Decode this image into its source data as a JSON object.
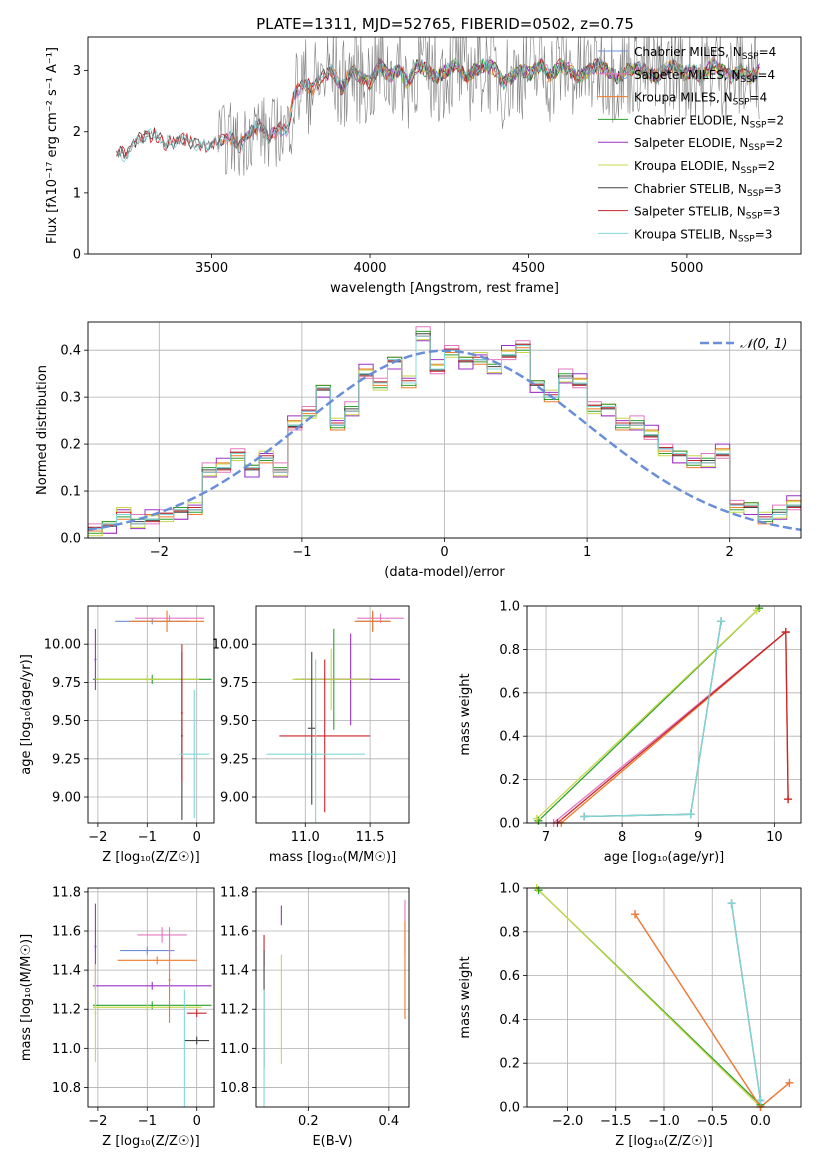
{
  "figure_title": "PLATE=1311, MJD=52765, FIBERID=0502, z=0.75",
  "colors": {
    "Chabrier MILES": "#6a8fd8",
    "Salpeter MILES": "#e377c2",
    "Kroupa MILES": "#f07a28",
    "Chabrier ELODIE": "#2ca02c",
    "Salpeter ELODIE": "#9b30c8",
    "Kroupa ELODIE": "#c8d84a",
    "Chabrier STELIB": "#444444",
    "Salpeter STELIB": "#c8242b",
    "Kroupa STELIB": "#7fd8d8",
    "data": "#808080",
    "normal": "#6a8fd8"
  },
  "chart_data": [
    {
      "id": "spectrum",
      "type": "line",
      "title": "",
      "xlabel": "wavelength [Angstrom, rest frame]",
      "ylabel": "Flux [fλ10⁻¹⁷ erg cm⁻² s⁻¹ A⁻¹]",
      "xlim": [
        3110,
        5360
      ],
      "ylim": [
        0,
        3.55
      ],
      "xticks": [
        3500,
        4000,
        4500,
        5000
      ],
      "yticks": [
        0,
        1,
        2,
        3
      ],
      "grid": false,
      "legend_position": "right",
      "legend": [
        {
          "name": "Chabrier MILES",
          "label": "Chabrier MILES, N",
          "sub": "SSP",
          "tail": "=4"
        },
        {
          "name": "Salpeter MILES",
          "label": "Salpeter MILES, N",
          "sub": "SSP",
          "tail": "=4"
        },
        {
          "name": "Kroupa MILES",
          "label": "Kroupa MILES, N",
          "sub": "SSP",
          "tail": "=4"
        },
        {
          "name": "Chabrier ELODIE",
          "label": "Chabrier ELODIE, N",
          "sub": "SSP",
          "tail": "=2"
        },
        {
          "name": "Salpeter ELODIE",
          "label": "Salpeter ELODIE, N",
          "sub": "SSP",
          "tail": "=2"
        },
        {
          "name": "Kroupa ELODIE",
          "label": "Kroupa ELODIE, N",
          "sub": "SSP",
          "tail": "=2"
        },
        {
          "name": "Chabrier STELIB",
          "label": "Chabrier STELIB, N",
          "sub": "SSP",
          "tail": "=3"
        },
        {
          "name": "Salpeter STELIB",
          "label": "Salpeter STELIB, N",
          "sub": "SSP",
          "tail": "=3"
        },
        {
          "name": "Kroupa STELIB",
          "label": "Kroupa STELIB, N",
          "sub": "SSP",
          "tail": "=3"
        }
      ],
      "data_series": {
        "x": [
          3200,
          3230,
          3260,
          3290,
          3320,
          3350,
          3380,
          3410,
          3440,
          3470,
          3500,
          3530,
          3560,
          3590,
          3620,
          3650,
          3680,
          3710,
          3740,
          3760,
          3790,
          3820,
          3850,
          3880,
          3910,
          3940,
          3970,
          4000,
          4030,
          4060,
          4090,
          4120,
          4150,
          4180,
          4210,
          4240,
          4270,
          4300,
          4330,
          4360,
          4390,
          4420,
          4450,
          4480,
          4510,
          4540,
          4570,
          4600,
          4630,
          4660,
          4690,
          4720,
          4750,
          4780,
          4810,
          4840,
          4870,
          4900,
          4930,
          4960,
          4990,
          5020,
          5050,
          5080,
          5110,
          5140,
          5170,
          5200,
          5230
        ],
        "y": [
          1.7,
          1.6,
          1.85,
          1.9,
          1.95,
          1.8,
          1.85,
          1.9,
          1.82,
          1.78,
          1.8,
          1.85,
          1.9,
          1.75,
          2.0,
          2.1,
          1.9,
          2.05,
          2.0,
          2.6,
          2.8,
          2.7,
          2.9,
          3.0,
          2.7,
          3.0,
          2.9,
          2.8,
          3.1,
          2.9,
          3.0,
          2.8,
          3.1,
          3.0,
          2.9,
          3.0,
          3.1,
          2.9,
          3.0,
          3.1,
          3.05,
          2.8,
          2.9,
          3.0,
          2.95,
          3.1,
          2.9,
          3.1,
          3.0,
          2.9,
          3.0,
          3.1,
          3.0,
          2.9,
          3.0,
          3.05,
          3.0,
          2.9,
          3.0,
          3.1,
          2.95,
          3.0,
          2.9,
          3.1,
          3.0,
          2.9,
          3.0,
          2.9,
          3.0
        ]
      }
    },
    {
      "id": "residuals",
      "type": "line",
      "title": "",
      "xlabel": "(data-model)/error",
      "ylabel": "Normed distribution",
      "xlim": [
        -2.5,
        2.5
      ],
      "ylim": [
        0,
        0.46
      ],
      "xticks": [
        -2,
        -1,
        0,
        1,
        2
      ],
      "yticks": [
        0.0,
        0.1,
        0.2,
        0.3,
        0.4
      ],
      "grid": true,
      "legend_position": "top-right",
      "normal_label": "𝒩(0, 1)",
      "bin_edges": [
        -2.5,
        -2.4,
        -2.3,
        -2.2,
        -2.1,
        -2.0,
        -1.9,
        -1.8,
        -1.7,
        -1.6,
        -1.5,
        -1.4,
        -1.3,
        -1.2,
        -1.1,
        -1.0,
        -0.9,
        -0.8,
        -0.7,
        -0.6,
        -0.5,
        -0.4,
        -0.3,
        -0.2,
        -0.1,
        0.0,
        0.1,
        0.2,
        0.3,
        0.4,
        0.5,
        0.6,
        0.7,
        0.8,
        0.9,
        1.0,
        1.1,
        1.2,
        1.3,
        1.4,
        1.5,
        1.6,
        1.7,
        1.8,
        1.9,
        2.0,
        2.1,
        2.2,
        2.3,
        2.4,
        2.5
      ],
      "histogram": [
        0.02,
        0.03,
        0.05,
        0.03,
        0.04,
        0.05,
        0.06,
        0.06,
        0.14,
        0.15,
        0.18,
        0.15,
        0.17,
        0.14,
        0.24,
        0.27,
        0.32,
        0.24,
        0.27,
        0.35,
        0.33,
        0.38,
        0.33,
        0.43,
        0.36,
        0.4,
        0.38,
        0.38,
        0.36,
        0.39,
        0.41,
        0.33,
        0.3,
        0.34,
        0.33,
        0.28,
        0.28,
        0.24,
        0.24,
        0.22,
        0.19,
        0.18,
        0.16,
        0.16,
        0.18,
        0.07,
        0.07,
        0.04,
        0.05,
        0.07
      ],
      "series_offsets": {
        "Chabrier MILES": 0.0,
        "Salpeter MILES": 0.02,
        "Kroupa MILES": 0.01,
        "Chabrier ELODIE": -0.01,
        "Salpeter ELODIE": -0.02,
        "Kroupa ELODIE": 0.015,
        "Chabrier STELIB": 0.005,
        "Salpeter STELIB": -0.005,
        "Kroupa STELIB": 0.0
      }
    },
    {
      "id": "age-vs-Z",
      "type": "scatter",
      "xlabel": "Z [log₁₀(Z/Z☉)]",
      "ylabel": "age  [log₁₀(age/yr)]",
      "xlim": [
        -2.2,
        0.35
      ],
      "ylim": [
        8.83,
        10.25
      ],
      "xticks": [
        -2,
        -1,
        0
      ],
      "yticks": [
        9.0,
        9.25,
        9.5,
        9.75,
        10.0
      ],
      "grid": true,
      "errorbars": [
        {
          "series": "Chabrier MILES",
          "x": -0.9,
          "y": 10.15,
          "xerr": 0.75,
          "yerr": 0.02
        },
        {
          "series": "Salpeter MILES",
          "x": -0.55,
          "y": 10.17,
          "xerr": 0.7,
          "yerr": 0.02
        },
        {
          "series": "Kroupa MILES",
          "x": -0.6,
          "y": 10.15,
          "xerr": 0.75,
          "yerr": 0.07
        },
        {
          "series": "Chabrier ELODIE",
          "x": -0.9,
          "y": 9.77,
          "xerr": 1.2,
          "yerr": 0.03
        },
        {
          "series": "Salpeter ELODIE",
          "x": -2.05,
          "y": 9.9,
          "xerr": 0.02,
          "yerr": 0.2
        },
        {
          "series": "Kroupa ELODIE",
          "x": -1.0,
          "y": 9.77,
          "xerr": 1.05,
          "yerr": 0.03
        },
        {
          "series": "Chabrier STELIB",
          "x": -0.3,
          "y": 9.4,
          "xerr": 0.02,
          "yerr": 0.55
        },
        {
          "series": "Salpeter STELIB",
          "x": -0.3,
          "y": 9.55,
          "xerr": 0.02,
          "yerr": 0.45
        },
        {
          "series": "Kroupa STELIB",
          "x": -0.05,
          "y": 9.28,
          "xerr": 0.3,
          "yerr": 0.42
        }
      ]
    },
    {
      "id": "age-vs-mass",
      "type": "scatter",
      "xlabel": "mass [log₁₀(M/M☉)]",
      "ylabel": "",
      "xlim": [
        10.62,
        11.8
      ],
      "ylim": [
        8.83,
        10.25
      ],
      "xticks": [
        11.0,
        11.5
      ],
      "yticks": [
        9.0,
        9.25,
        9.5,
        9.75,
        10.0
      ],
      "grid": true,
      "errorbars": [
        {
          "series": "Chabrier MILES",
          "x": 11.52,
          "y": 10.15,
          "xerr": 0.13,
          "yerr": 0.06
        },
        {
          "series": "Salpeter MILES",
          "x": 11.58,
          "y": 10.17,
          "xerr": 0.18,
          "yerr": 0.03
        },
        {
          "series": "Kroupa MILES",
          "x": 11.52,
          "y": 10.15,
          "xerr": 0.14,
          "yerr": 0.07
        },
        {
          "series": "Chabrier ELODIE",
          "x": 11.22,
          "y": 9.77,
          "xerr": 0.3,
          "yerr": 0.33
        },
        {
          "series": "Salpeter ELODIE",
          "x": 11.35,
          "y": 9.77,
          "xerr": 0.38,
          "yerr": 0.3
        },
        {
          "series": "Kroupa ELODIE",
          "x": 11.2,
          "y": 9.77,
          "xerr": 0.3,
          "yerr": 0.2
        },
        {
          "series": "Chabrier STELIB",
          "x": 11.05,
          "y": 9.45,
          "xerr": 0.03,
          "yerr": 0.5
        },
        {
          "series": "Salpeter STELIB",
          "x": 11.15,
          "y": 9.4,
          "xerr": 0.35,
          "yerr": 0.5
        },
        {
          "series": "Kroupa STELIB",
          "x": 11.08,
          "y": 9.28,
          "xerr": 0.38,
          "yerr": 0.62
        }
      ]
    },
    {
      "id": "weight-vs-age",
      "type": "line",
      "xlabel": "age  [log₁₀(age/yr)]",
      "ylabel": "mass weight",
      "xlim": [
        6.75,
        10.35
      ],
      "ylim": [
        0,
        1.0
      ],
      "xticks": [
        7,
        8,
        9,
        10
      ],
      "yticks": [
        0.0,
        0.2,
        0.4,
        0.6,
        0.8,
        1.0
      ],
      "grid": true,
      "series": [
        {
          "name": "Chabrier ELODIE",
          "x": [
            6.9,
            9.8
          ],
          "y": [
            0.01,
            0.99
          ]
        },
        {
          "name": "Kroupa ELODIE",
          "x": [
            6.88,
            9.77
          ],
          "y": [
            0.02,
            0.98
          ]
        },
        {
          "name": "Salpeter MILES",
          "x": [
            7.1,
            10.15
          ],
          "y": [
            0.0,
            0.88
          ]
        },
        {
          "name": "Kroupa MILES",
          "x": [
            7.2,
            10.15,
            10.18
          ],
          "y": [
            0.0,
            0.88,
            0.11
          ]
        },
        {
          "name": "Salpeter STELIB",
          "x": [
            7.15,
            10.15,
            10.18
          ],
          "y": [
            0.0,
            0.88,
            0.11
          ]
        },
        {
          "name": "Chabrier STELIB",
          "x": [
            7.5,
            8.9,
            9.3
          ],
          "y": [
            0.03,
            0.04,
            0.93
          ]
        },
        {
          "name": "Kroupa STELIB",
          "x": [
            7.5,
            8.9,
            9.3
          ],
          "y": [
            0.03,
            0.04,
            0.93
          ]
        }
      ]
    },
    {
      "id": "mass-vs-Z",
      "type": "scatter",
      "xlabel": "Z [log₁₀(Z/Z☉)]",
      "ylabel": "mass [log₁₀(M/M☉)]",
      "xlim": [
        -2.2,
        0.35
      ],
      "ylim": [
        10.7,
        11.82
      ],
      "xticks": [
        -2,
        -1,
        0
      ],
      "yticks": [
        10.8,
        11.0,
        11.2,
        11.4,
        11.6,
        11.8
      ],
      "grid": true,
      "errorbars": [
        {
          "series": "Chabrier MILES",
          "x": -1.0,
          "y": 11.5,
          "xerr": 0.55,
          "yerr": 0.02
        },
        {
          "series": "Salpeter MILES",
          "x": -0.7,
          "y": 11.58,
          "xerr": 0.5,
          "yerr": 0.04
        },
        {
          "series": "Kroupa MILES",
          "x": -0.8,
          "y": 11.45,
          "xerr": 0.8,
          "yerr": 0.02
        },
        {
          "series": "Chabrier ELODIE",
          "x": -0.9,
          "y": 11.22,
          "xerr": 1.2,
          "yerr": 0.02
        },
        {
          "series": "Salpeter ELODIE",
          "x": -0.9,
          "y": 11.32,
          "xerr": 1.2,
          "yerr": 0.02
        },
        {
          "series": "Kroupa ELODIE",
          "x": -1.0,
          "y": 11.21,
          "xerr": 1.1,
          "yerr": 0.02
        },
        {
          "series": "Chabrier STELIB",
          "x": 0.0,
          "y": 11.04,
          "xerr": 0.25,
          "yerr": 0.02
        },
        {
          "series": "Salpeter STELIB",
          "x": 0.0,
          "y": 11.18,
          "xerr": 0.2,
          "yerr": 0.02
        },
        {
          "series": "Kroupa STELIB",
          "x": -0.25,
          "y": 11.0,
          "xerr": 0.02,
          "yerr": 0.3
        },
        {
          "series": "Salpeter ELODIE",
          "x": -2.05,
          "y": 11.52,
          "xerr": 0.02,
          "yerr": 0.22
        },
        {
          "series": "Kroupa ELODIE",
          "x": -2.05,
          "y": 11.18,
          "xerr": 0.02,
          "yerr": 0.25
        },
        {
          "series": "Kroupa MILES",
          "x": -0.55,
          "y": 11.35,
          "xerr": 0.02,
          "yerr": 0.22
        },
        {
          "series": "Salpeter MILES",
          "x": -0.55,
          "y": 11.5,
          "xerr": 0.02,
          "yerr": 0.12
        }
      ]
    },
    {
      "id": "mass-vs-EBV",
      "type": "scatter",
      "xlabel": "E(B-V)",
      "ylabel": "",
      "xlim": [
        0.07,
        0.45
      ],
      "ylim": [
        10.7,
        11.82
      ],
      "xticks": [
        0.2,
        0.4
      ],
      "yticks": [
        10.8,
        11.0,
        11.2,
        11.4,
        11.6,
        11.8
      ],
      "grid": true,
      "errorbars": [
        {
          "series": "Salpeter STELIB",
          "x": 0.09,
          "y": 11.5,
          "xerr": 0.0,
          "yerr": 0.08
        },
        {
          "series": "Chabrier STELIB",
          "x": 0.09,
          "y": 11.2,
          "xerr": 0.0,
          "yerr": 0.3
        },
        {
          "series": "Kroupa STELIB",
          "x": 0.09,
          "y": 11.0,
          "xerr": 0.0,
          "yerr": 0.3
        },
        {
          "series": "Salpeter ELODIE",
          "x": 0.133,
          "y": 11.68,
          "xerr": 0.0,
          "yerr": 0.05
        },
        {
          "series": "Kroupa ELODIE",
          "x": 0.133,
          "y": 11.2,
          "xerr": 0.0,
          "yerr": 0.28
        },
        {
          "series": "Salpeter MILES",
          "x": 0.44,
          "y": 11.62,
          "xerr": 0.0,
          "yerr": 0.14
        },
        {
          "series": "Kroupa MILES",
          "x": 0.44,
          "y": 11.4,
          "xerr": 0.0,
          "yerr": 0.25
        }
      ]
    },
    {
      "id": "weight-vs-Z",
      "type": "line",
      "xlabel": "Z [log₁₀(Z/Z☉)]",
      "ylabel": "mass weight",
      "xlim": [
        -2.42,
        0.42
      ],
      "ylim": [
        0,
        1.0
      ],
      "xticks": [
        -2.0,
        -1.5,
        -1.0,
        -0.5,
        0.0
      ],
      "yticks": [
        0.0,
        0.2,
        0.4,
        0.6,
        0.8,
        1.0
      ],
      "grid": true,
      "series": [
        {
          "name": "Chabrier ELODIE",
          "x": [
            -2.3,
            0.0
          ],
          "y": [
            0.99,
            0.01
          ]
        },
        {
          "name": "Kroupa ELODIE",
          "x": [
            -2.32,
            0.0
          ],
          "y": [
            1.0,
            0.0
          ]
        },
        {
          "name": "Salpeter MILES",
          "x": [
            -1.3,
            0.0,
            0.3
          ],
          "y": [
            0.88,
            0.0,
            0.11
          ]
        },
        {
          "name": "Kroupa MILES",
          "x": [
            -1.3,
            0.0,
            0.3
          ],
          "y": [
            0.88,
            0.0,
            0.11
          ]
        },
        {
          "name": "Chabrier STELIB",
          "x": [
            -0.3,
            0.0
          ],
          "y": [
            0.93,
            0.03
          ]
        },
        {
          "name": "Kroupa STELIB",
          "x": [
            -0.3,
            0.0
          ],
          "y": [
            0.93,
            0.03
          ]
        }
      ]
    }
  ]
}
